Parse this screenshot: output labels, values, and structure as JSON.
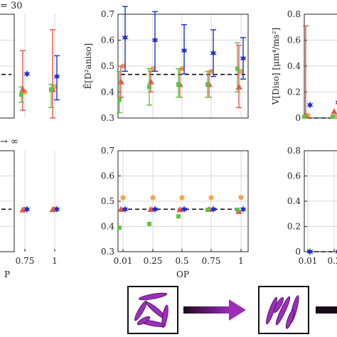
{
  "colors": {
    "orange": "#f5a742",
    "red": "#e8534b",
    "green": "#5fc441",
    "blue": "#1f2fd6",
    "purple_dark": "#1a0a1a",
    "purple": "#9b2fb8",
    "grid": "#d9d9d9"
  },
  "annotations": {
    "top_left_fragment": "= 30",
    "mid_left_fragment": "→ ∞",
    "xlabel_left_fragment": "P"
  },
  "chart_data": [
    {
      "id": "top-left",
      "type": "scatter",
      "x_ticks": [
        "0.75",
        "1"
      ],
      "series": [
        {
          "color": "orange",
          "marker": "circle",
          "x": [
            "0.75",
            "1"
          ],
          "y": [
            0.4,
            0.42
          ],
          "err": [
            null,
            null
          ]
        },
        {
          "color": "red",
          "marker": "triangle",
          "x": [
            "0.75",
            "1"
          ],
          "y": [
            0.41,
            0.41
          ],
          "err": [
            [
              0.33,
              0.56
            ],
            [
              0.3,
              0.64
            ]
          ]
        },
        {
          "color": "green",
          "marker": "square",
          "x": [
            "0.75",
            "1"
          ],
          "y": [
            0.39,
            0.41
          ],
          "err": [
            [
              0.36,
              0.42
            ],
            [
              0.34,
              0.43
            ]
          ]
        },
        {
          "color": "blue",
          "marker": "star",
          "x": [
            "0.75",
            "1"
          ],
          "y": [
            0.47,
            0.46
          ],
          "err": [
            null,
            [
              0.37,
              0.54
            ]
          ]
        }
      ]
    },
    {
      "id": "top-middle",
      "type": "scatter",
      "ylabel": "Ẽ[D²aniso]",
      "ylim": [
        0.3,
        0.7
      ],
      "y_ticks": [
        "0.3",
        "0.4",
        "0.5",
        "0.6",
        "0.7"
      ],
      "x_ticks": [
        "0.01",
        "0.25",
        "0.5",
        "0.75",
        "1"
      ],
      "dashed_reference": 0.468,
      "series": [
        {
          "color": "orange",
          "marker": "circle",
          "x": [
            "0.01",
            "0.25",
            "0.5",
            "0.75",
            "1"
          ],
          "y": [
            0.5,
            0.49,
            0.49,
            0.48,
            0.48
          ],
          "err": [
            null,
            null,
            null,
            null,
            null
          ]
        },
        {
          "color": "red",
          "marker": "triangle",
          "x": [
            "0.01",
            "0.25",
            "0.5",
            "0.75",
            "1"
          ],
          "y": [
            0.44,
            0.44,
            0.43,
            0.43,
            0.42
          ],
          "err": [
            [
              0.38,
              0.5
            ],
            [
              0.4,
              0.48
            ],
            [
              0.38,
              0.49
            ],
            [
              0.38,
              0.48
            ],
            [
              0.34,
              0.58
            ]
          ]
        },
        {
          "color": "green",
          "marker": "square",
          "x": [
            "0.01",
            "0.25",
            "0.5",
            "0.75",
            "1"
          ],
          "y": [
            0.37,
            0.42,
            0.43,
            0.43,
            0.49
          ],
          "err": [
            [
              0.32,
              0.48
            ],
            [
              0.35,
              0.49
            ],
            [
              0.38,
              0.49
            ],
            [
              0.38,
              0.48
            ],
            [
              0.4,
              0.59
            ]
          ]
        },
        {
          "color": "blue",
          "marker": "star",
          "x": [
            "0.01",
            "0.25",
            "0.5",
            "0.75",
            "1"
          ],
          "y": [
            0.61,
            0.6,
            0.56,
            0.55,
            0.53
          ],
          "err": [
            [
              0.48,
              0.73
            ],
            [
              0.48,
              0.71
            ],
            [
              0.47,
              0.66
            ],
            [
              0.46,
              0.64
            ],
            [
              0.45,
              0.61
            ]
          ]
        }
      ]
    },
    {
      "id": "top-right",
      "type": "scatter",
      "ylabel": "V[Diso] [μm⁴/ms²]",
      "ylim": [
        0,
        0.8
      ],
      "y_ticks": [
        "0",
        "0.2",
        "0.4",
        "0.6",
        "0.8"
      ],
      "dashed_reference": 0.0,
      "series": [
        {
          "color": "orange",
          "marker": "circle",
          "x": [
            "0.01",
            "0.25"
          ],
          "y": [
            0.02,
            0.01
          ],
          "err": [
            null,
            null
          ]
        },
        {
          "color": "red",
          "marker": "triangle",
          "x": [
            "0.01",
            "0.25"
          ],
          "y": [
            0.02,
            0.05
          ],
          "err": [
            [
              0.0,
              0.71
            ],
            null
          ]
        },
        {
          "color": "green",
          "marker": "square",
          "x": [
            "0.01",
            "0.25"
          ],
          "y": [
            0.01,
            0.01
          ],
          "err": [
            null,
            null
          ]
        },
        {
          "color": "blue",
          "marker": "star",
          "x": [
            "0.01",
            "0.25"
          ],
          "y": [
            0.1,
            0.12
          ],
          "err": [
            null,
            null
          ]
        }
      ]
    },
    {
      "id": "bottom-left",
      "type": "scatter",
      "x_ticks": [
        "0.75",
        "1"
      ],
      "series": [
        {
          "color": "orange",
          "marker": "circle",
          "x": [
            "0.75",
            "1"
          ],
          "y": [
            0.468,
            0.47
          ],
          "err": [
            null,
            null
          ]
        },
        {
          "color": "red",
          "marker": "triangle",
          "x": [
            "0.75",
            "1"
          ],
          "y": [
            0.466,
            0.467
          ],
          "err": [
            null,
            null
          ]
        },
        {
          "color": "blue",
          "marker": "star",
          "x": [
            "0.75",
            "1"
          ],
          "y": [
            0.468,
            0.468
          ],
          "err": [
            null,
            null
          ]
        }
      ]
    },
    {
      "id": "bottom-middle",
      "type": "scatter",
      "xlabel": "OP",
      "ylim": [
        0.3,
        0.7
      ],
      "y_ticks": [
        "0.3",
        "0.4",
        "0.5",
        "0.6",
        "0.7"
      ],
      "x_ticks": [
        "0.01",
        "0.25",
        "0.5",
        "0.75",
        "1"
      ],
      "dashed_reference": 0.468,
      "series": [
        {
          "color": "orange",
          "marker": "circle",
          "x": [
            "0.01",
            "0.25",
            "0.5",
            "0.75",
            "1"
          ],
          "y": [
            0.514,
            0.514,
            0.514,
            0.514,
            0.515
          ],
          "err": [
            null,
            null,
            null,
            null,
            null
          ]
        },
        {
          "color": "red",
          "marker": "triangle",
          "x": [
            "0.01",
            "0.25",
            "0.5",
            "0.75",
            "1"
          ],
          "y": [
            0.468,
            0.468,
            0.467,
            0.468,
            0.46
          ],
          "err": [
            null,
            null,
            null,
            null,
            null
          ]
        },
        {
          "color": "green",
          "marker": "square",
          "x": [
            "0.01",
            "0.25",
            "0.5",
            "0.75",
            "1"
          ],
          "y": [
            0.395,
            0.41,
            0.44,
            0.466,
            0.466
          ],
          "err": [
            null,
            null,
            null,
            null,
            null
          ]
        },
        {
          "color": "blue",
          "marker": "star",
          "x": [
            "0.01",
            "0.25",
            "0.5",
            "0.75",
            "1"
          ],
          "y": [
            0.468,
            0.468,
            0.468,
            0.468,
            0.468
          ],
          "err": [
            null,
            null,
            null,
            null,
            null
          ]
        }
      ]
    },
    {
      "id": "bottom-right",
      "type": "scatter",
      "ylim": [
        0,
        0.8
      ],
      "y_ticks": [
        "0",
        "0.2",
        "0.4",
        "0.6",
        "0.8"
      ],
      "x_ticks": [
        "0.01",
        "0.2"
      ],
      "dashed_reference": 0.0,
      "series": [
        {
          "color": "blue",
          "marker": "star",
          "x": [
            "0.01",
            "0.25"
          ],
          "y": [
            0.0,
            0.0
          ],
          "err": [
            null,
            null
          ]
        }
      ]
    }
  ]
}
